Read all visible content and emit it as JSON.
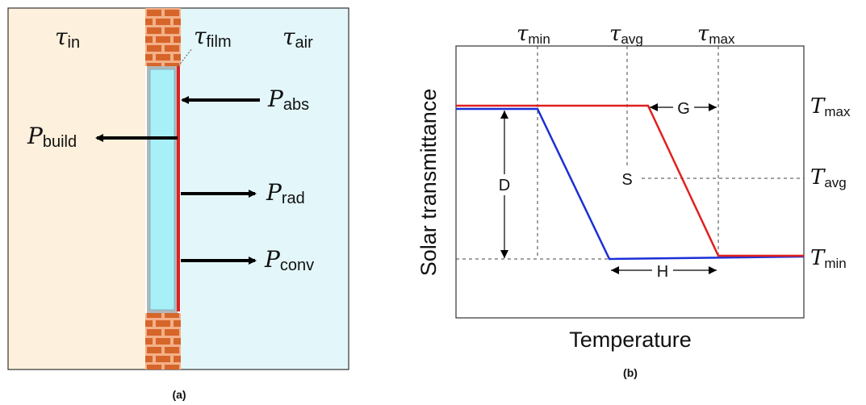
{
  "panel_a": {
    "caption": "(a)",
    "labels": {
      "tau_in": {
        "sym": "τ",
        "sub": "in"
      },
      "tau_film": {
        "sym": "τ",
        "sub": "film"
      },
      "tau_air": {
        "sym": "τ",
        "sub": "air"
      },
      "p_abs": {
        "sym": "P",
        "sub": "abs"
      },
      "p_build": {
        "sym": "P",
        "sub": "build"
      },
      "p_rad": {
        "sym": "P",
        "sub": "rad"
      },
      "p_conv": {
        "sym": "P",
        "sub": "conv"
      }
    },
    "colors": {
      "inside": "#fdf0dc",
      "outside": "#e3f7fa",
      "brick": "#d6652a",
      "mortar": "#f4b088",
      "glass": "#a8f0f8",
      "film": "#e02020"
    }
  },
  "panel_b": {
    "caption": "(b)",
    "chart_data": {
      "type": "line",
      "xlabel": "Temperature",
      "ylabel": "Solar transmittance",
      "x_tick_labels": [
        {
          "sym": "τ",
          "sub": "min"
        },
        {
          "sym": "τ",
          "sub": "avg"
        },
        {
          "sym": "τ",
          "sub": "max"
        }
      ],
      "y_tick_labels": [
        {
          "sym": "T",
          "sub": "max"
        },
        {
          "sym": "T",
          "sub": "avg"
        },
        {
          "sym": "T",
          "sub": "min"
        }
      ],
      "annotations": [
        "G",
        "S",
        "D",
        "H"
      ],
      "series": [
        {
          "color": "#1a2fd6"
        },
        {
          "color": "#e02020"
        }
      ]
    }
  }
}
